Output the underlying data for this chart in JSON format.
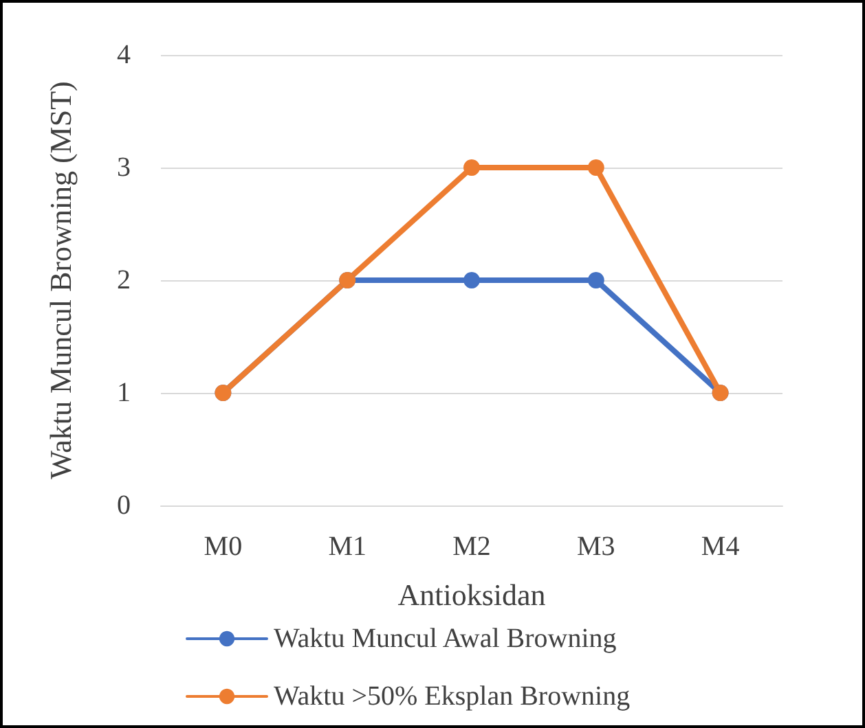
{
  "chart_data": {
    "type": "line",
    "xlabel": "Antioksidan",
    "ylabel": "Waktu Muncul Browning (MST)",
    "categories": [
      "M0",
      "M1",
      "M2",
      "M3",
      "M4"
    ],
    "series": [
      {
        "name": "Waktu Muncul Awal Browning",
        "color": "#4472c4",
        "values": [
          1,
          2,
          2,
          2,
          1
        ]
      },
      {
        "name": "Waktu >50% Eksplan Browning",
        "color": "#ed7d31",
        "values": [
          1,
          2,
          3,
          3,
          1
        ]
      }
    ],
    "ylim": [
      0,
      4
    ],
    "yticks": [
      0,
      1,
      2,
      3,
      4
    ],
    "grid": "y",
    "legend": "bottom",
    "marker": "circle",
    "line_style": "solid"
  }
}
